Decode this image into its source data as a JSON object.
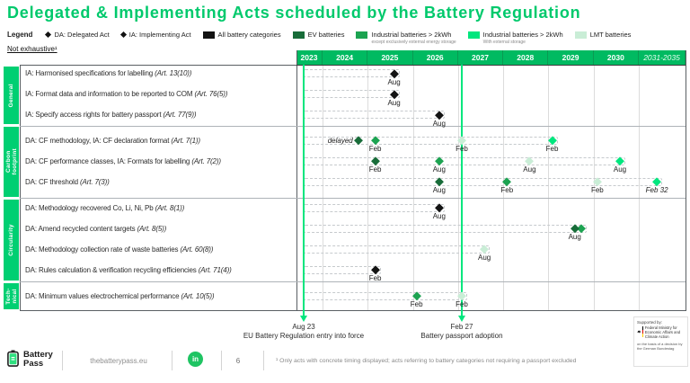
{
  "title": "Delegated & Implementing Acts scheduled by the Battery Regulation",
  "not_exhaustive": "Not exhaustive¹",
  "palette": {
    "brand": "#00C96C",
    "header_green": "#00BA61",
    "category_green": "#00CF72",
    "event_line": "#00E67E",
    "black": "#131313",
    "ev": "#186C39",
    "ind_ex": "#1CA351",
    "ind_ws": "#00E67E",
    "lmt": "#C9EDD6"
  },
  "legend": {
    "label": "Legend",
    "acts": [
      {
        "label": "DA: Delegated Act"
      },
      {
        "label": "IA: Implementing Act"
      }
    ],
    "categories": [
      {
        "label": "All battery categories",
        "color": "black"
      },
      {
        "label": "EV batteries",
        "color": "ev"
      },
      {
        "label": "Industrial batteries > 2kWh",
        "sub": "except exclusively external energy storage",
        "color": "ind_ex"
      },
      {
        "label": "Industrial batteries > 2kWh",
        "sub": "With external storage",
        "color": "ind_ws"
      },
      {
        "label": "LMT batteries",
        "color": "lmt"
      }
    ]
  },
  "timeline": {
    "years": [
      "2023",
      "2024",
      "2025",
      "2026",
      "2027",
      "2028",
      "2029",
      "2030",
      "2031-2035"
    ],
    "events": [
      {
        "m": 0,
        "date": "Aug 23",
        "label": "EU Battery Regulation entry into force"
      },
      {
        "m": 42,
        "date": "Feb 27",
        "label": "Battery passport adoption"
      }
    ]
  },
  "sections": [
    {
      "name": "General",
      "label_lines": [
        "General"
      ],
      "rows": [
        {
          "text": "IA: Harmonised specifications for labelling",
          "art": "(Art. 13(10))",
          "markers": [
            {
              "m": 24,
              "color": "black",
              "label": "Aug"
            }
          ]
        },
        {
          "text": "IA: Format data and information to be reported to COM",
          "art": "(Art. 76(5))",
          "markers": [
            {
              "m": 24,
              "color": "black",
              "label": "Aug"
            }
          ]
        },
        {
          "text": "IA: Specify access rights for battery passport",
          "art": "(Art. 77(9))",
          "markers": [
            {
              "m": 36,
              "color": "black",
              "label": "Aug"
            }
          ]
        }
      ]
    },
    {
      "name": "Carbon footprint",
      "label_lines": [
        "Carbon",
        "footprint"
      ],
      "rows": [
        {
          "text": "DA: CF methodology, IA: CF declaration format",
          "art": "(Art. 7(1))",
          "prefix": "delayed",
          "markers": [
            {
              "m": 14.5,
              "color": "ev"
            },
            {
              "m": 19,
              "color": "ind_ex",
              "label": "Feb"
            },
            {
              "m": 42,
              "color": "lmt",
              "label": "Feb"
            },
            {
              "m": 66,
              "color": "ind_ws",
              "label": "Feb"
            }
          ]
        },
        {
          "text": "DA: CF performance classes, IA: Formats for labelling",
          "art": "(Art. 7(2))",
          "markers": [
            {
              "m": 19,
              "color": "ev",
              "label": "Feb"
            },
            {
              "m": 36,
              "color": "ind_ex",
              "label": "Aug"
            },
            {
              "m": 60,
              "color": "lmt",
              "label": "Aug"
            },
            {
              "m": 84,
              "color": "ind_ws",
              "label": "Aug"
            }
          ]
        },
        {
          "text": "DA: CF threshold",
          "art": "(Art. 7(3))",
          "markers": [
            {
              "m": 36,
              "color": "ev",
              "label": "Aug"
            },
            {
              "m": 54,
              "color": "ind_ex",
              "label": "Feb"
            },
            {
              "m": 78,
              "color": "lmt",
              "label": "Feb"
            },
            {
              "m": 102,
              "color": "ind_ws",
              "label": "Feb 32",
              "italic": true
            }
          ]
        }
      ]
    },
    {
      "name": "Circularity",
      "label_lines": [
        "Circularity"
      ],
      "rows": [
        {
          "text": "DA: Methodology recovered Co, Li, Ni, Pb",
          "art": "(Art. 8(1))",
          "markers": [
            {
              "m": 36,
              "color": "black",
              "label": "Aug"
            }
          ]
        },
        {
          "text": "DA: Amend recycled content targets",
          "art": "(Art. 8(5))",
          "markers": [
            {
              "m": 73.8,
              "color": "ind_ex"
            },
            {
              "m": 72,
              "color": "ev",
              "label": "Aug"
            }
          ]
        },
        {
          "text": "DA: Methodology collection rate of waste batteries",
          "art": "(Art. 60(8))",
          "markers": [
            {
              "m": 48,
              "color": "lmt",
              "label": "Aug"
            }
          ]
        },
        {
          "text": "DA: Rules calculation & verification recycling efficiencies",
          "art": "(Art. 71(4))",
          "markers": [
            {
              "m": 19,
              "color": "black",
              "label": "Feb"
            }
          ]
        }
      ]
    },
    {
      "name": "Tech-nical",
      "label_lines": [
        "Tech-",
        "nical"
      ],
      "rows": [
        {
          "text": "DA: Minimum values electrochemical performance",
          "art": "(Art. 10(5))",
          "markers": [
            {
              "m": 30,
              "color": "ind_ex",
              "label": "Feb"
            },
            {
              "m": 42,
              "color": "lmt",
              "label": "Feb"
            }
          ]
        }
      ]
    }
  ],
  "chart_data": {
    "type": "table",
    "title": "Delegated & Implementing Acts scheduled by the Battery Regulation",
    "x_axis_years": [
      "2023",
      "2024",
      "2025",
      "2026",
      "2027",
      "2028",
      "2029",
      "2030",
      "2031-2035"
    ],
    "key_events": [
      {
        "date": "Aug 2023",
        "label": "EU Battery Regulation entry into force"
      },
      {
        "date": "Feb 2027",
        "label": "Battery passport adoption"
      }
    ],
    "milestones": [
      {
        "section": "General",
        "act": "IA: Harmonised specifications for labelling",
        "article": "Art. 13(10)",
        "category": "All battery categories",
        "date": "Aug 2025"
      },
      {
        "section": "General",
        "act": "IA: Format data and information to be reported to COM",
        "article": "Art. 76(5)",
        "category": "All battery categories",
        "date": "Aug 2025"
      },
      {
        "section": "General",
        "act": "IA: Specify access rights for battery passport",
        "article": "Art. 77(9)",
        "category": "All battery categories",
        "date": "Aug 2026"
      },
      {
        "section": "Carbon footprint",
        "act": "DA: CF methodology, IA: CF declaration format",
        "article": "Art. 7(1)",
        "category": "EV batteries",
        "date": "Feb 2025",
        "note": "delayed"
      },
      {
        "section": "Carbon footprint",
        "act": "DA: CF methodology, IA: CF declaration format",
        "article": "Art. 7(1)",
        "category": "Industrial batteries > 2kWh except exclusively external energy storage",
        "date": "Feb 2025"
      },
      {
        "section": "Carbon footprint",
        "act": "DA: CF methodology, IA: CF declaration format",
        "article": "Art. 7(1)",
        "category": "LMT batteries",
        "date": "Feb 2027"
      },
      {
        "section": "Carbon footprint",
        "act": "DA: CF methodology, IA: CF declaration format",
        "article": "Art. 7(1)",
        "category": "Industrial batteries > 2kWh with external storage",
        "date": "Feb 2029"
      },
      {
        "section": "Carbon footprint",
        "act": "DA: CF performance classes, IA: Formats for labelling",
        "article": "Art. 7(2)",
        "category": "EV batteries",
        "date": "Feb 2025"
      },
      {
        "section": "Carbon footprint",
        "act": "DA: CF performance classes, IA: Formats for labelling",
        "article": "Art. 7(2)",
        "category": "Industrial batteries > 2kWh except exclusively external energy storage",
        "date": "Aug 2026"
      },
      {
        "section": "Carbon footprint",
        "act": "DA: CF performance classes, IA: Formats for labelling",
        "article": "Art. 7(2)",
        "category": "LMT batteries",
        "date": "Aug 2028"
      },
      {
        "section": "Carbon footprint",
        "act": "DA: CF performance classes, IA: Formats for labelling",
        "article": "Art. 7(2)",
        "category": "Industrial batteries > 2kWh with external storage",
        "date": "Aug 2030"
      },
      {
        "section": "Carbon footprint",
        "act": "DA: CF threshold",
        "article": "Art. 7(3)",
        "category": "EV batteries",
        "date": "Aug 2026"
      },
      {
        "section": "Carbon footprint",
        "act": "DA: CF threshold",
        "article": "Art. 7(3)",
        "category": "Industrial batteries > 2kWh except exclusively external energy storage",
        "date": "Feb 2028"
      },
      {
        "section": "Carbon footprint",
        "act": "DA: CF threshold",
        "article": "Art. 7(3)",
        "category": "LMT batteries",
        "date": "Feb 2030"
      },
      {
        "section": "Carbon footprint",
        "act": "DA: CF threshold",
        "article": "Art. 7(3)",
        "category": "Industrial batteries > 2kWh with external storage",
        "date": "Feb 2032"
      },
      {
        "section": "Circularity",
        "act": "DA: Methodology recovered Co, Li, Ni, Pb",
        "article": "Art. 8(1)",
        "category": "All battery categories",
        "date": "Aug 2026"
      },
      {
        "section": "Circularity",
        "act": "DA: Amend recycled content targets",
        "article": "Art. 8(5)",
        "category": "EV batteries",
        "date": "Aug 2029"
      },
      {
        "section": "Circularity",
        "act": "DA: Amend recycled content targets",
        "article": "Art. 8(5)",
        "category": "Industrial batteries > 2kWh except exclusively external energy storage",
        "date": "Aug 2029"
      },
      {
        "section": "Circularity",
        "act": "DA: Methodology collection rate of waste batteries",
        "article": "Art. 60(8)",
        "category": "LMT batteries",
        "date": "Aug 2027"
      },
      {
        "section": "Circularity",
        "act": "DA: Rules calculation & verification recycling efficiencies",
        "article": "Art. 71(4)",
        "category": "All battery categories",
        "date": "Feb 2025"
      },
      {
        "section": "Technical",
        "act": "DA: Minimum values electrochemical performance",
        "article": "Art. 10(5)",
        "category": "Industrial batteries > 2kWh except exclusively external energy storage",
        "date": "Feb 2026"
      },
      {
        "section": "Technical",
        "act": "DA: Minimum values electrochemical performance",
        "article": "Art. 10(5)",
        "category": "LMT batteries",
        "date": "Feb 2027"
      }
    ]
  },
  "footer": {
    "brand_line1": "Battery",
    "brand_line2": "Pass",
    "url": "thebatterypass.eu",
    "linkedin": "in",
    "page": "6",
    "footnote": "¹ Only acts with concrete timing displayed; acts referring to battery categories not requiring a passport excluded",
    "supported": {
      "label": "Supported by:",
      "ministry": "Federal Ministry for Economic Affairs and Climate Action",
      "basis": "on the basis of a decision by the German Bundestag"
    }
  }
}
